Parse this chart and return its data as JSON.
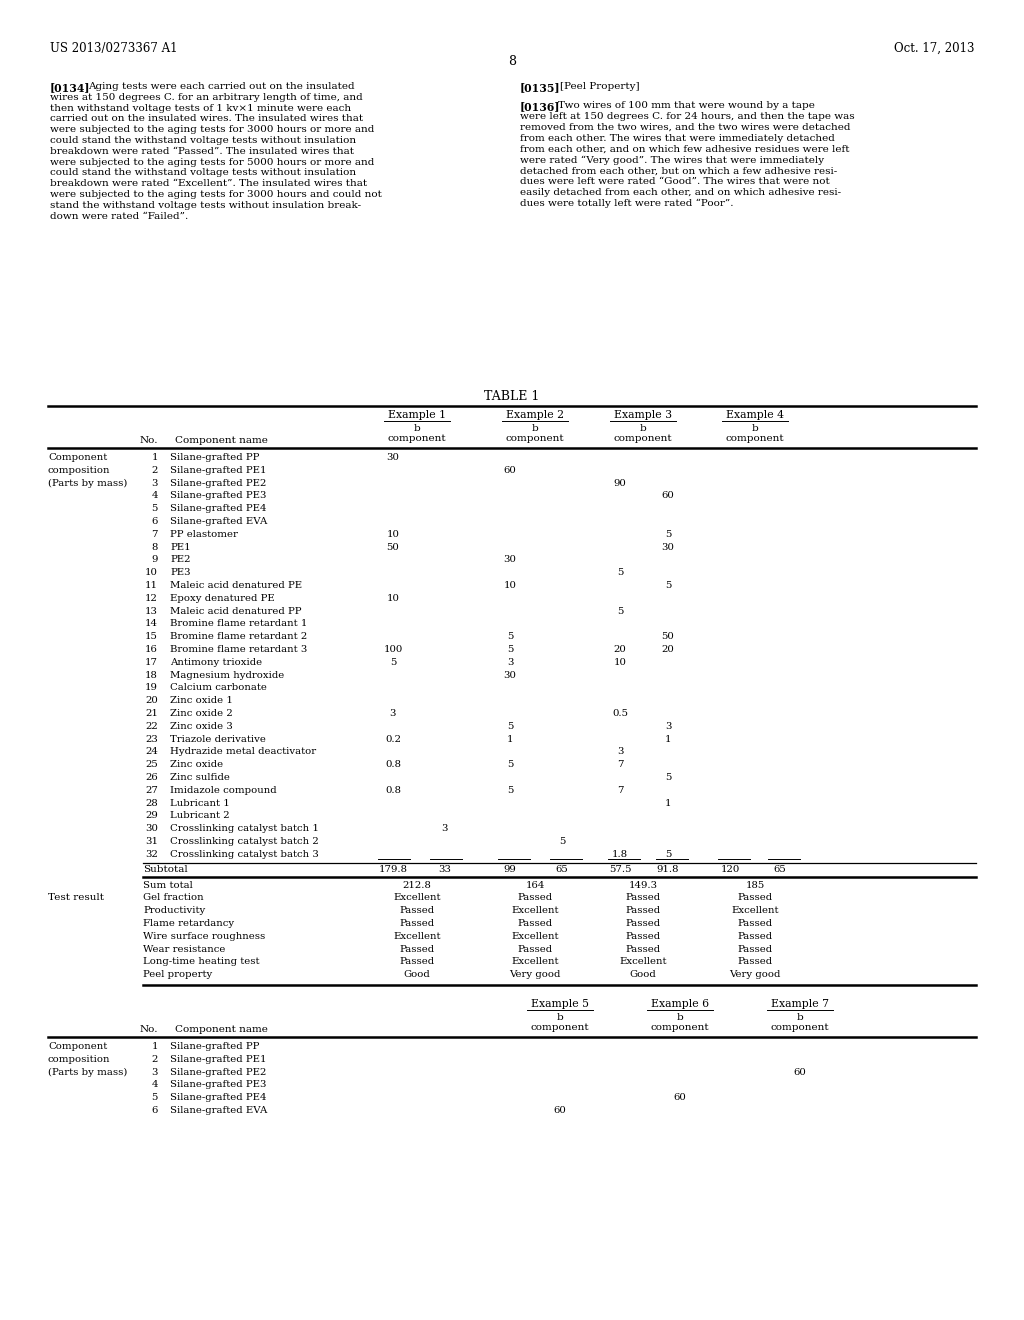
{
  "page_header_left": "US 2013/0273367 A1",
  "page_header_right": "Oct. 17, 2013",
  "page_number": "8",
  "p134_label": "[0134]",
  "p134_lines": [
    "Aging tests were each carried out on the insulated",
    "wires at 150 degrees C. for an arbitrary length of time, and",
    "then withstand voltage tests of 1 kv×1 minute were each",
    "carried out on the insulated wires. The insulated wires that",
    "were subjected to the aging tests for 3000 hours or more and",
    "could stand the withstand voltage tests without insulation",
    "breakdown were rated “Passed”. The insulated wires that",
    "were subjected to the aging tests for 5000 hours or more and",
    "could stand the withstand voltage tests without insulation",
    "breakdown were rated “Excellent”. The insulated wires that",
    "were subjected to the aging tests for 3000 hours and could not",
    "stand the withstand voltage tests without insulation break-",
    "down were rated “Failed”."
  ],
  "p135_label": "[0135]",
  "p135_header": "[Peel Property]",
  "p136_label": "[0136]",
  "p136_lines": [
    "Two wires of 100 mm that were wound by a tape",
    "were left at 150 degrees C. for 24 hours, and then the tape was",
    "removed from the two wires, and the two wires were detached",
    "from each other. The wires that were immediately detached",
    "from each other, and on which few adhesive residues were left",
    "were rated “Very good”. The wires that were immediately",
    "detached from each other, but on which a few adhesive resi-",
    "dues were left were rated “Good”. The wires that were not",
    "easily detached from each other, and on which adhesive resi-",
    "dues were totally left were rated “Poor”."
  ],
  "table_title": "TABLE 1",
  "col_headers": [
    "Example 1",
    "Example 2",
    "Example 3",
    "Example 4"
  ],
  "component_rows": [
    [
      "1",
      "Silane-grafted PP",
      "30",
      "",
      "",
      "",
      "",
      ""
    ],
    [
      "2",
      "Silane-grafted PE1",
      "",
      "",
      "60",
      "",
      "",
      ""
    ],
    [
      "3",
      "Silane-grafted PE2",
      "",
      "",
      "",
      "",
      "90",
      ""
    ],
    [
      "4",
      "Silane-grafted PE3",
      "",
      "",
      "",
      "",
      "",
      "60"
    ],
    [
      "5",
      "Silane-grafted PE4",
      "",
      "",
      "",
      "",
      "",
      ""
    ],
    [
      "6",
      "Silane-grafted EVA",
      "",
      "",
      "",
      "",
      "",
      ""
    ],
    [
      "7",
      "PP elastomer",
      "10",
      "",
      "",
      "",
      "",
      "5"
    ],
    [
      "8",
      "PE1",
      "50",
      "",
      "",
      "",
      "",
      "30"
    ],
    [
      "9",
      "PE2",
      "",
      "",
      "30",
      "",
      "",
      ""
    ],
    [
      "10",
      "PE3",
      "",
      "",
      "",
      "",
      "5",
      ""
    ],
    [
      "11",
      "Maleic acid denatured PE",
      "",
      "",
      "10",
      "",
      "",
      "5"
    ],
    [
      "12",
      "Epoxy denatured PE",
      "10",
      "",
      "",
      "",
      "",
      ""
    ],
    [
      "13",
      "Maleic acid denatured PP",
      "",
      "",
      "",
      "",
      "5",
      ""
    ],
    [
      "14",
      "Bromine flame retardant 1",
      "",
      "",
      "",
      "",
      "",
      ""
    ],
    [
      "15",
      "Bromine flame retardant 2",
      "",
      "",
      "5",
      "",
      "",
      "50"
    ],
    [
      "16",
      "Bromine flame retardant 3",
      "100",
      "",
      "5",
      "",
      "20",
      "20"
    ],
    [
      "17",
      "Antimony trioxide",
      "5",
      "",
      "3",
      "",
      "10",
      ""
    ],
    [
      "18",
      "Magnesium hydroxide",
      "",
      "",
      "30",
      "",
      "",
      ""
    ],
    [
      "19",
      "Calcium carbonate",
      "",
      "",
      "",
      "",
      "",
      ""
    ],
    [
      "20",
      "Zinc oxide 1",
      "",
      "",
      "",
      "",
      "",
      ""
    ],
    [
      "21",
      "Zinc oxide 2",
      "3",
      "",
      "",
      "",
      "0.5",
      ""
    ],
    [
      "22",
      "Zinc oxide 3",
      "",
      "",
      "5",
      "",
      "",
      "3"
    ],
    [
      "23",
      "Triazole derivative",
      "0.2",
      "",
      "1",
      "",
      "",
      "1"
    ],
    [
      "24",
      "Hydrazide metal deactivator",
      "",
      "",
      "",
      "",
      "3",
      ""
    ],
    [
      "25",
      "Zinc oxide",
      "0.8",
      "",
      "5",
      "",
      "7",
      ""
    ],
    [
      "26",
      "Zinc sulfide",
      "",
      "",
      "",
      "",
      "",
      "5"
    ],
    [
      "27",
      "Imidazole compound",
      "0.8",
      "",
      "5",
      "",
      "7",
      ""
    ],
    [
      "28",
      "Lubricant 1",
      "",
      "",
      "",
      "",
      "",
      "1"
    ],
    [
      "29",
      "Lubricant 2",
      "",
      "",
      "",
      "",
      "",
      ""
    ],
    [
      "30",
      "Crosslinking catalyst batch 1",
      "",
      "3",
      "",
      "",
      "",
      ""
    ],
    [
      "31",
      "Crosslinking catalyst batch 2",
      "",
      "",
      "",
      "5",
      "",
      ""
    ],
    [
      "32",
      "Crosslinking catalyst batch 3",
      "",
      "",
      "",
      "",
      "1.8",
      "5"
    ]
  ],
  "subtotal_vals": [
    "179.8",
    "33",
    "99",
    "65",
    "57.5",
    "91.8",
    "120",
    "65"
  ],
  "test_result_label": "Test result",
  "test_rows": [
    [
      "Sum total",
      "212.8",
      "164",
      "149.3",
      "185"
    ],
    [
      "Gel fraction",
      "Excellent",
      "Passed",
      "Passed",
      "Passed"
    ],
    [
      "Productivity",
      "Passed",
      "Excellent",
      "Passed",
      "Excellent"
    ],
    [
      "Flame retardancy",
      "Passed",
      "Passed",
      "Passed",
      "Passed"
    ],
    [
      "Wire surface roughness",
      "Excellent",
      "Excellent",
      "Passed",
      "Passed"
    ],
    [
      "Wear resistance",
      "Passed",
      "Passed",
      "Passed",
      "Passed"
    ],
    [
      "Long-time heating test",
      "Passed",
      "Excellent",
      "Excellent",
      "Passed"
    ],
    [
      "Peel property",
      "Good",
      "Very good",
      "Good",
      "Very good"
    ]
  ],
  "sec_col_headers": [
    "Example 5",
    "Example 6",
    "Example 7"
  ],
  "sec_component_rows": [
    [
      "1",
      "Silane-grafted PP",
      "",
      "",
      ""
    ],
    [
      "2",
      "Silane-grafted PE1",
      "",
      "",
      ""
    ],
    [
      "3",
      "Silane-grafted PE2",
      "",
      "",
      "60"
    ],
    [
      "4",
      "Silane-grafted PE3",
      "",
      "",
      ""
    ],
    [
      "5",
      "Silane-grafted PE4",
      "",
      "60",
      ""
    ],
    [
      "6",
      "Silane-grafted EVA",
      "60",
      "",
      ""
    ]
  ]
}
